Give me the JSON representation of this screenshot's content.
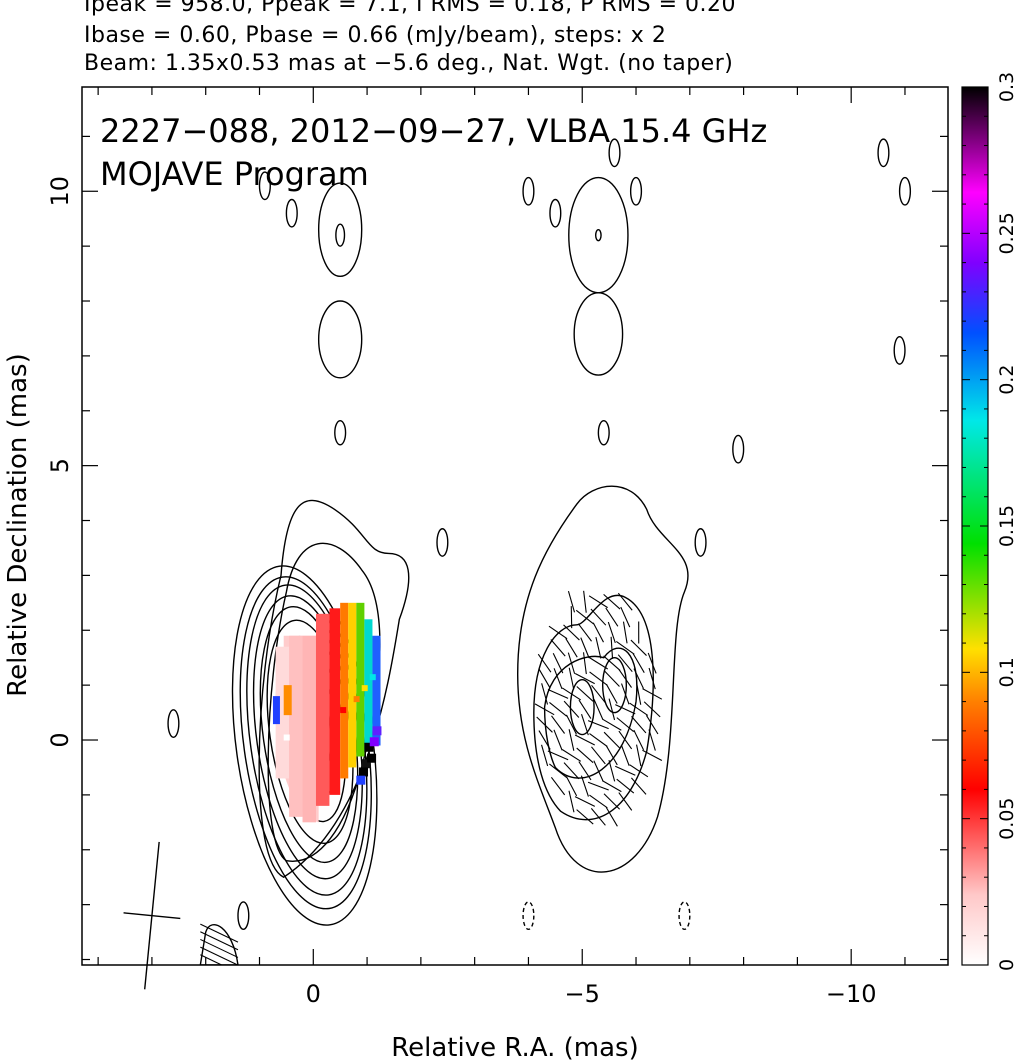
{
  "header": {
    "line1": "Ipeak = 958.0, Ppeak = 7.1, I RMS = 0.18, P RMS = 0.20",
    "line2": "Ibase = 0.60, Pbase = 0.66 (mJy/beam), steps: x 2",
    "line3": "Beam: 1.35x0.53 mas at −5.6 deg., Nat. Wgt. (no taper)"
  },
  "chart_data": {
    "type": "contour",
    "title": "2227−088, 2012−09−27, VLBA 15.4 GHz",
    "subtitle": "MOJAVE Program",
    "xlabel": "Relative R.A. (mas)",
    "ylabel": "Relative Declination (mas)",
    "xlim": [
      4.3,
      -11.8
    ],
    "ylim": [
      -4.1,
      11.9
    ],
    "x_ticks": [
      0,
      -5,
      -10
    ],
    "x_tick_labels": [
      "0",
      "−5",
      "−10"
    ],
    "y_ticks": [
      0,
      5,
      10
    ],
    "y_tick_labels": [
      "0",
      "5",
      "10"
    ],
    "colorbar": {
      "range": [
        0,
        0.3
      ],
      "ticks": [
        0,
        0.05,
        0.1,
        0.15,
        0.2,
        0.25,
        0.3
      ],
      "tick_labels": [
        "0",
        "0.05",
        "0.1",
        "0.15",
        "0.2",
        "0.25",
        "0.3"
      ]
    },
    "beam": {
      "major_mas": 1.35,
      "minor_mas": 0.53,
      "pa_deg": -5.6,
      "center": [
        3.0,
        -3.2
      ]
    },
    "left_panel": {
      "core": [
        0.0,
        0.3
      ],
      "contour_levels": 10,
      "fractional_pol": [
        {
          "x": 0.55,
          "y": 0.1,
          "v": 0.01
        },
        {
          "x": -0.5,
          "y": 0.6,
          "v": 0.06
        },
        {
          "x": -0.75,
          "y": 0.8,
          "v": 0.09
        },
        {
          "x": -0.9,
          "y": 1.0,
          "v": 0.14
        },
        {
          "x": -1.05,
          "y": 1.2,
          "v": 0.19
        },
        {
          "x": -1.0,
          "y": -0.3,
          "v": 0.3
        }
      ]
    },
    "right_panel": {
      "contour_levels": 4,
      "peaks": [
        [
          -5.0,
          0.6
        ],
        [
          -5.6,
          1.0
        ]
      ],
      "evpa_region": {
        "x": [
          -4.3,
          -6.3
        ],
        "y": [
          -1.4,
          2.7
        ]
      }
    },
    "islands": [
      {
        "x": -0.5,
        "y": 9.3
      },
      {
        "x": -0.5,
        "y": 7.3
      },
      {
        "x": -0.5,
        "y": 5.6
      },
      {
        "x": -5.3,
        "y": 9.2
      },
      {
        "x": -5.3,
        "y": 7.4
      },
      {
        "x": -5.4,
        "y": 5.6
      },
      {
        "x": 0.9,
        "y": 10.1
      },
      {
        "x": 0.4,
        "y": 9.6
      },
      {
        "x": -4.0,
        "y": 10.0
      },
      {
        "x": -4.5,
        "y": 9.6
      },
      {
        "x": -5.6,
        "y": 10.7
      },
      {
        "x": -6.0,
        "y": 10.0
      },
      {
        "x": -10.6,
        "y": 10.7
      },
      {
        "x": -11.0,
        "y": 10.0
      },
      {
        "x": -10.9,
        "y": 7.1
      },
      {
        "x": -7.9,
        "y": 5.3
      },
      {
        "x": -2.4,
        "y": 3.6
      },
      {
        "x": -7.2,
        "y": 3.6
      },
      {
        "x": 2.6,
        "y": 0.3
      },
      {
        "x": 1.3,
        "y": -3.2
      },
      {
        "x": -4.0,
        "y": -3.2
      },
      {
        "x": -6.9,
        "y": -3.2
      }
    ],
    "grid": false,
    "legend": "colorbar-right"
  }
}
